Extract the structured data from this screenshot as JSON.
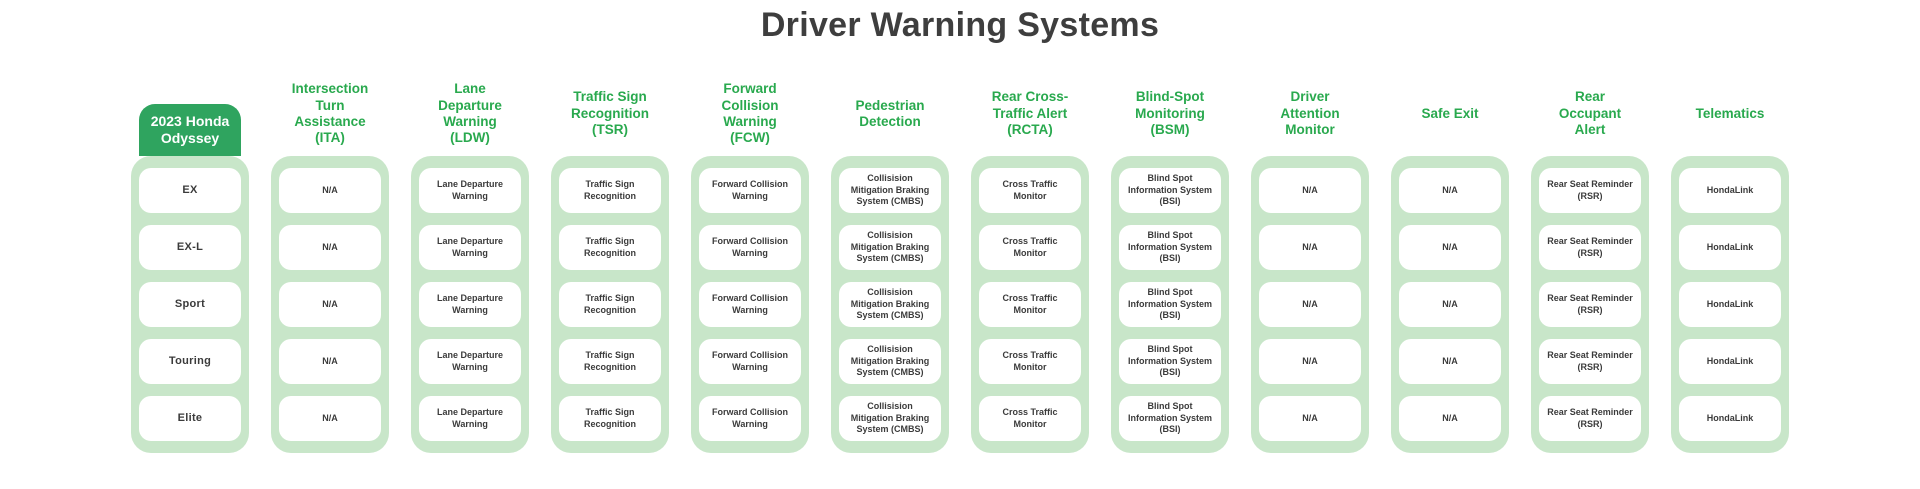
{
  "title": "Driver Warning Systems",
  "colors": {
    "badge_green": "#2fa45f",
    "column_bg_green": "#c8e6c9",
    "header_text_green": "#29a94e",
    "title_text": "#3e3e3e",
    "cell_text": "#3b3b3b",
    "cell_bg": "#ffffff"
  },
  "chart_data": {
    "type": "table",
    "title": "Driver Warning Systems",
    "corner_header": "2023 Honda Odyssey",
    "row_labels": [
      "EX",
      "EX-L",
      "Sport",
      "Touring",
      "Elite"
    ],
    "columns": [
      {
        "header": "Intersection Turn Assistance (ITA)",
        "values": [
          "N/A",
          "N/A",
          "N/A",
          "N/A",
          "N/A"
        ]
      },
      {
        "header": "Lane Departure Warning (LDW)",
        "values": [
          "Lane Departure Warning",
          "Lane Departure Warning",
          "Lane Departure Warning",
          "Lane Departure Warning",
          "Lane Departure Warning"
        ]
      },
      {
        "header": "Traffic Sign Recognition (TSR)",
        "values": [
          "Traffic Sign Recognition",
          "Traffic Sign Recognition",
          "Traffic Sign Recognition",
          "Traffic Sign Recognition",
          "Traffic Sign Recognition"
        ]
      },
      {
        "header": "Forward Collision Warning (FCW)",
        "values": [
          "Forward Collision Warning",
          "Forward Collision Warning",
          "Forward Collision Warning",
          "Forward Collision Warning",
          "Forward Collision Warning"
        ]
      },
      {
        "header": "Pedestrian Detection",
        "values": [
          "Collisision Mitigation Braking System (CMBS)",
          "Collisision Mitigation Braking System (CMBS)",
          "Collisision Mitigation Braking System (CMBS)",
          "Collisision Mitigation Braking System (CMBS)",
          "Collisision Mitigation Braking System (CMBS)"
        ]
      },
      {
        "header": "Rear Cross-Traffic Alert (RCTA)",
        "values": [
          "Cross Traffic Monitor",
          "Cross Traffic Monitor",
          "Cross Traffic Monitor",
          "Cross Traffic Monitor",
          "Cross Traffic Monitor"
        ]
      },
      {
        "header": "Blind-Spot Monitoring (BSM)",
        "values": [
          "Blind Spot Information System (BSI)",
          "Blind Spot Information System (BSI)",
          "Blind Spot Information System (BSI)",
          "Blind Spot Information System (BSI)",
          "Blind Spot Information System (BSI)"
        ]
      },
      {
        "header": "Driver Attention Monitor",
        "values": [
          "N/A",
          "N/A",
          "N/A",
          "N/A",
          "N/A"
        ]
      },
      {
        "header": "Safe Exit",
        "values": [
          "N/A",
          "N/A",
          "N/A",
          "N/A",
          "N/A"
        ]
      },
      {
        "header": "Rear Occupant Alert",
        "values": [
          "Rear Seat Reminder (RSR)",
          "Rear Seat Reminder (RSR)",
          "Rear Seat Reminder (RSR)",
          "Rear Seat Reminder (RSR)",
          "Rear Seat Reminder (RSR)"
        ]
      },
      {
        "header": "Telematics",
        "values": [
          "HondaLink",
          "HondaLink",
          "HondaLink",
          "HondaLink",
          "HondaLink"
        ]
      }
    ]
  }
}
